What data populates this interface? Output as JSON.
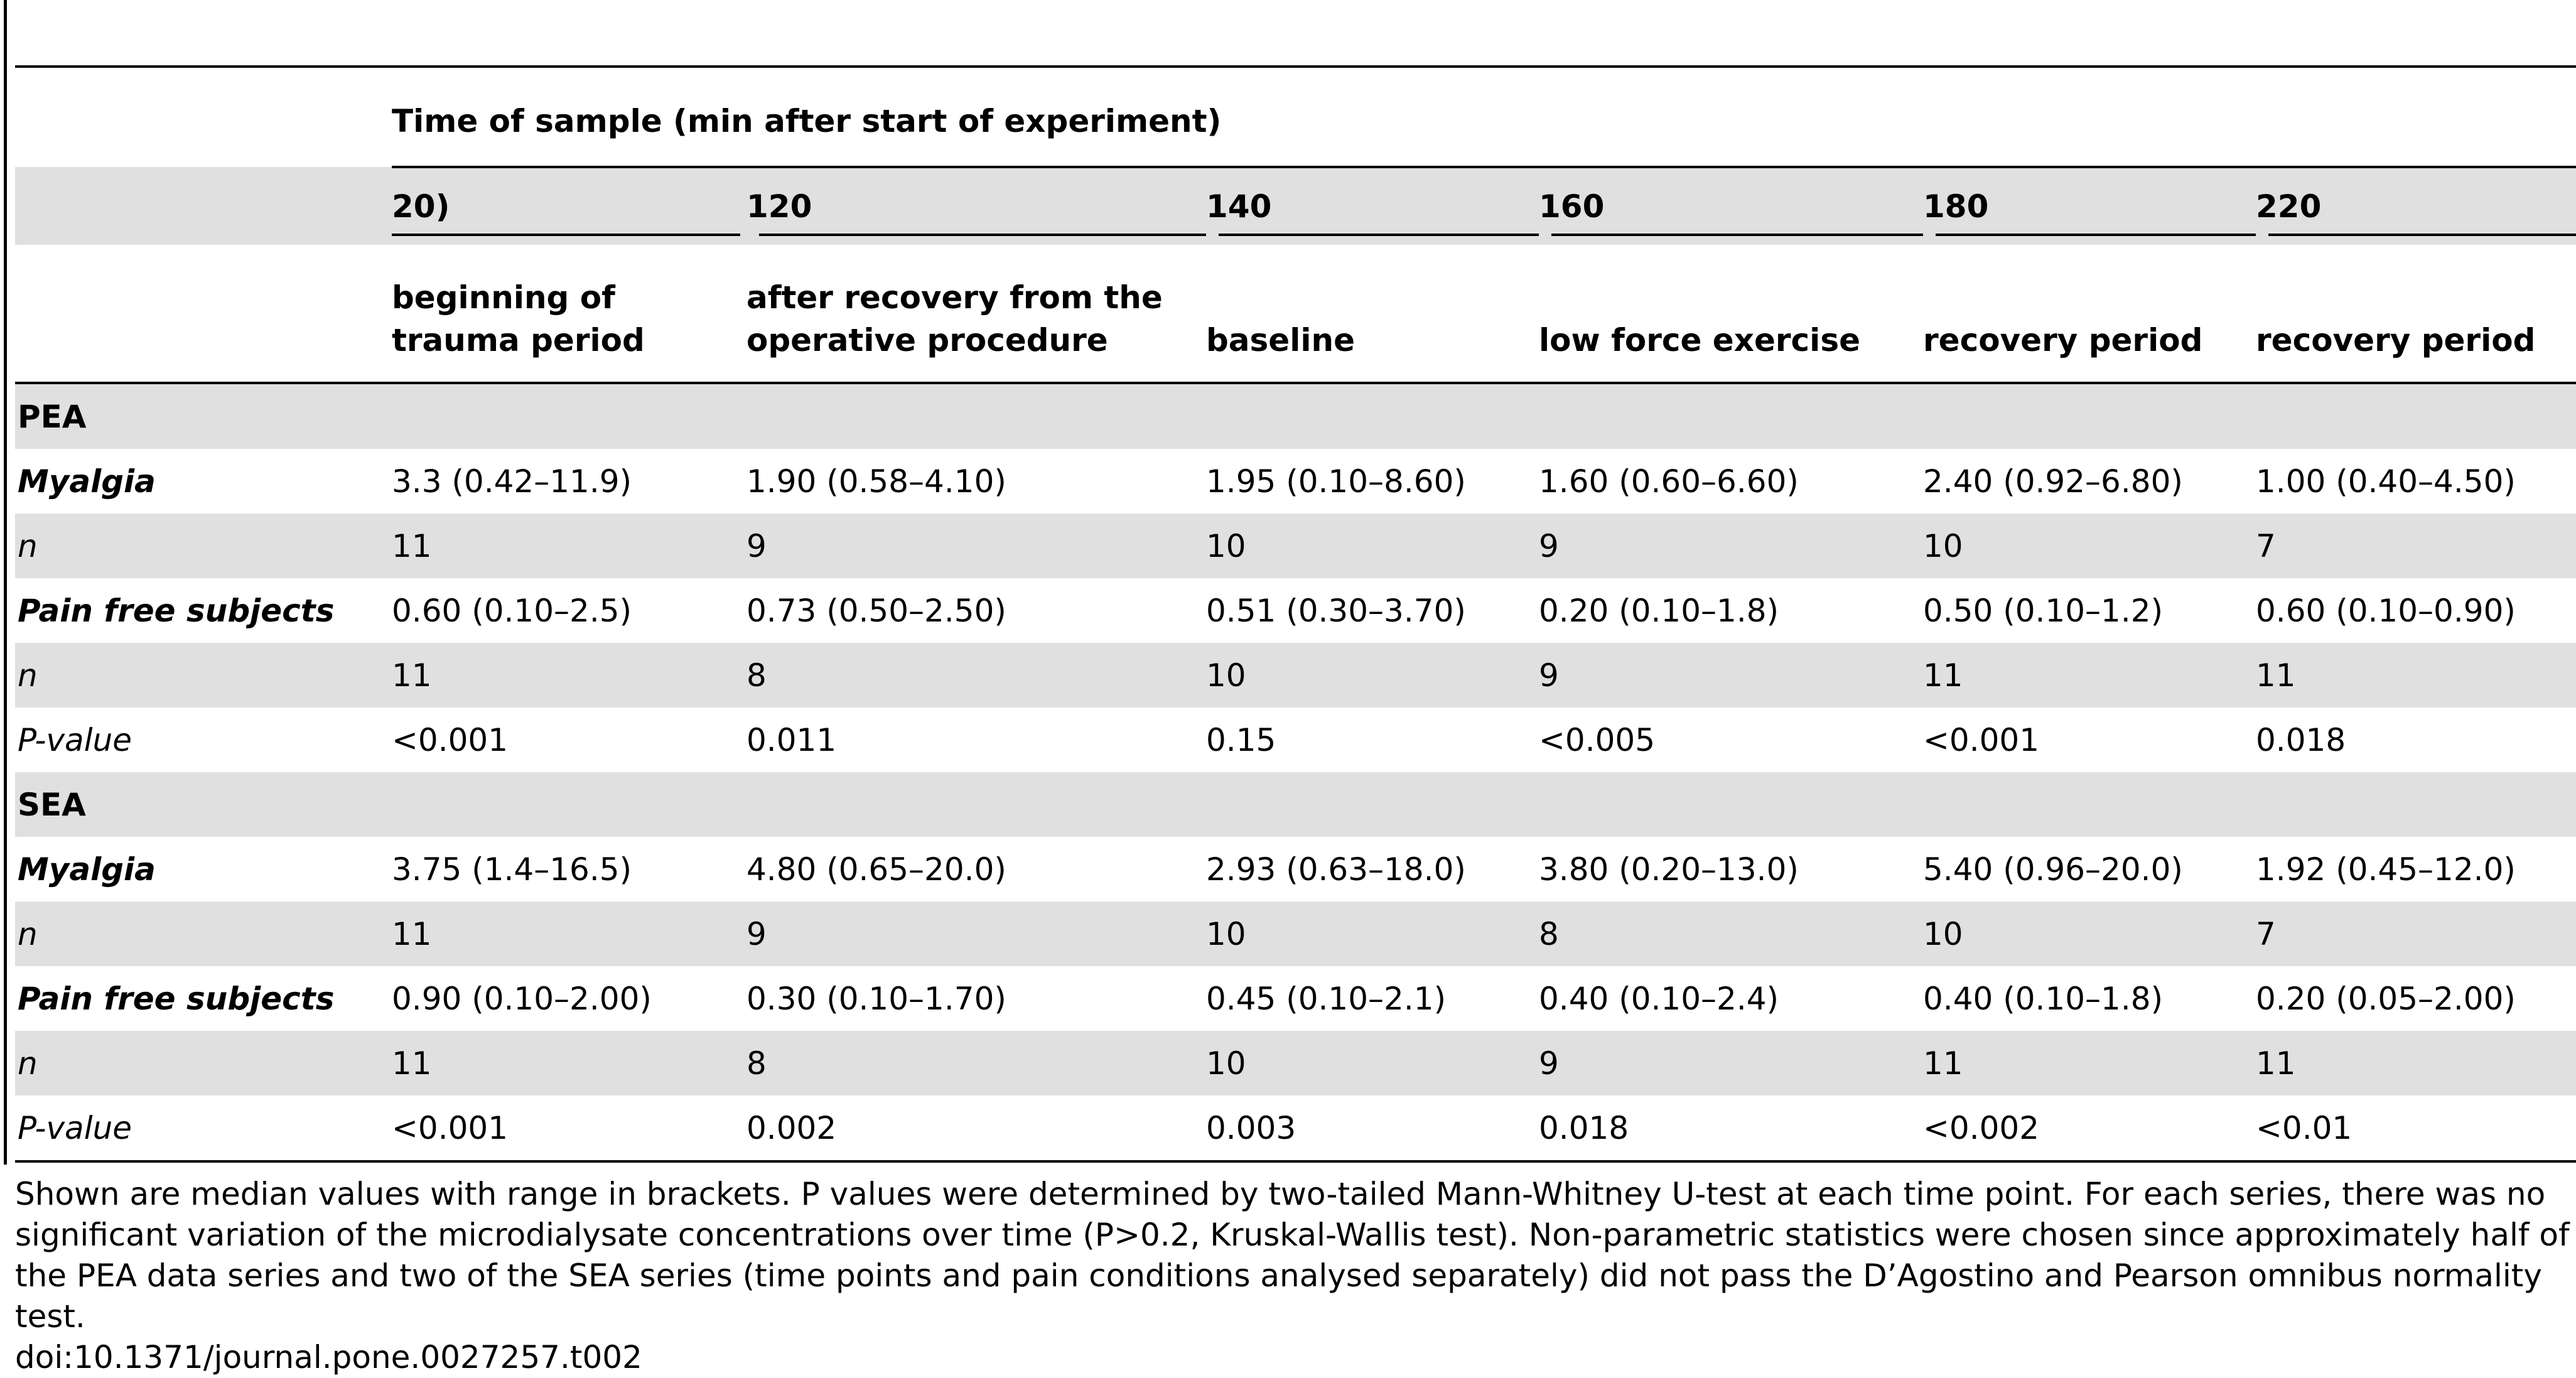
{
  "table": {
    "time_header": "Time of sample (min after start of experiment)",
    "time_points": [
      "20)",
      "120",
      "140",
      "160",
      "180",
      "220"
    ],
    "descriptions": [
      [
        "beginning of",
        "trauma period"
      ],
      [
        "after recovery from the",
        "operative procedure"
      ],
      [
        "",
        "baseline"
      ],
      [
        "",
        "low force exercise"
      ],
      [
        "",
        "recovery period"
      ],
      [
        "",
        "recovery period"
      ]
    ],
    "sections": [
      {
        "name": "PEA",
        "rows": [
          {
            "label": "Myalgia",
            "values": [
              "3.3 (0.42–11.9)",
              "1.90 (0.58–4.10)",
              "1.95 (0.10–8.60)",
              "1.60 (0.60–6.60)",
              "2.40 (0.92–6.80)",
              "1.00 (0.40–4.50)"
            ]
          },
          {
            "label": "n",
            "values": [
              "11",
              "9",
              "10",
              "9",
              "10",
              "7"
            ]
          },
          {
            "label": "Pain free subjects",
            "values": [
              "0.60 (0.10–2.5)",
              "0.73 (0.50–2.50)",
              "0.51 (0.30–3.70)",
              "0.20 (0.10–1.8)",
              "0.50 (0.10–1.2)",
              "0.60 (0.10–0.90)"
            ]
          },
          {
            "label": "n",
            "values": [
              "11",
              "8",
              "10",
              "9",
              "11",
              "11"
            ]
          },
          {
            "label": "P-value",
            "values": [
              "<0.001",
              "0.011",
              "0.15",
              "<0.005",
              "<0.001",
              "0.018"
            ]
          }
        ]
      },
      {
        "name": "SEA",
        "rows": [
          {
            "label": "Myalgia",
            "values": [
              "3.75 (1.4–16.5)",
              "4.80 (0.65–20.0)",
              "2.93 (0.63–18.0)",
              "3.80 (0.20–13.0)",
              "5.40 (0.96–20.0)",
              "1.92 (0.45–12.0)"
            ]
          },
          {
            "label": "n",
            "values": [
              "11",
              "9",
              "10",
              "8",
              "10",
              "7"
            ]
          },
          {
            "label": "Pain free subjects",
            "values": [
              "0.90 (0.10–2.00)",
              "0.30 (0.10–1.70)",
              "0.45 (0.10–2.1)",
              "0.40 (0.10–2.4)",
              "0.40 (0.10–1.8)",
              "0.20 (0.05–2.00)"
            ]
          },
          {
            "label": "n",
            "values": [
              "11",
              "8",
              "10",
              "9",
              "11",
              "11"
            ]
          },
          {
            "label": "P-value",
            "values": [
              "<0.001",
              "0.002",
              "0.003",
              "0.018",
              "<0.002",
              "<0.01"
            ]
          }
        ]
      }
    ]
  },
  "footnote": "Shown are median values with range in brackets. P values were determined by two-tailed Mann-Whitney U-test at each time point. For each series, there was no significant variation of the microdialysate concentrations over time (P>0.2, Kruskal-Wallis test). Non-parametric statistics were chosen since approximately half of the PEA data series and two of the SEA series (time points and pain conditions analysed separately) did not pass the D’Agostino and Pearson omnibus normality test.",
  "doi": "doi:10.1371/journal.pone.0027257.t002",
  "colors": {
    "shade": "#e0e0e0",
    "rule": "#000000"
  }
}
